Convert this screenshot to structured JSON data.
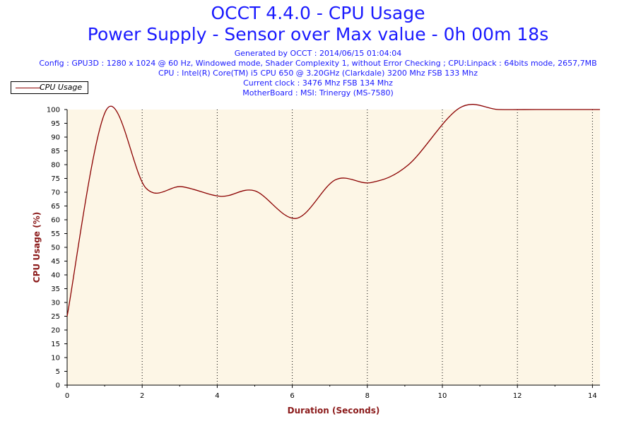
{
  "chart_data": {
    "type": "line",
    "title": "OCCT 4.4.0 - CPU Usage",
    "subtitle": "Power Supply - Sensor over Max value - 0h 00m 18s",
    "info_lines": [
      "Generated by OCCT : 2014/06/15 01:04:04",
      "Config : GPU3D : 1280 x 1024 @ 60 Hz, Windowed mode, Shader Complexity 1, without Error Checking ; CPU:Linpack : 64bits mode, 2657,7MB",
      "CPU : Intel(R) Core(TM) i5 CPU 650 @ 3.20GHz (Clarkdale) 3200 Mhz FSB 133 Mhz",
      "Current clock : 3476 Mhz FSB 134 Mhz",
      "MotherBoard : MSI: Trinergy (MS-7580)"
    ],
    "xlabel": "Duration (Seconds)",
    "ylabel": "CPU Usage (%)",
    "xlim": [
      0,
      14.2
    ],
    "ylim": [
      0,
      100
    ],
    "x_ticks": [
      0,
      2,
      4,
      6,
      8,
      10,
      12,
      14
    ],
    "y_ticks": [
      0,
      5,
      10,
      15,
      20,
      25,
      30,
      35,
      40,
      45,
      50,
      55,
      60,
      65,
      70,
      75,
      80,
      85,
      90,
      95,
      100
    ],
    "grid": "vertical dotted",
    "legend_position": "top-left",
    "series": [
      {
        "name": "CPU Usage",
        "color": "#8b0000",
        "x": [
          0,
          1.05,
          2.1,
          3.05,
          4.1,
          5.0,
          6.1,
          7.15,
          8.1,
          9.1,
          10.45,
          11.5,
          12.5,
          13.5,
          14.2
        ],
        "y": [
          25,
          100,
          71.5,
          72,
          68.5,
          70.5,
          60.5,
          74.5,
          73.5,
          80,
          100.5,
          100,
          100,
          100,
          100
        ]
      }
    ]
  }
}
